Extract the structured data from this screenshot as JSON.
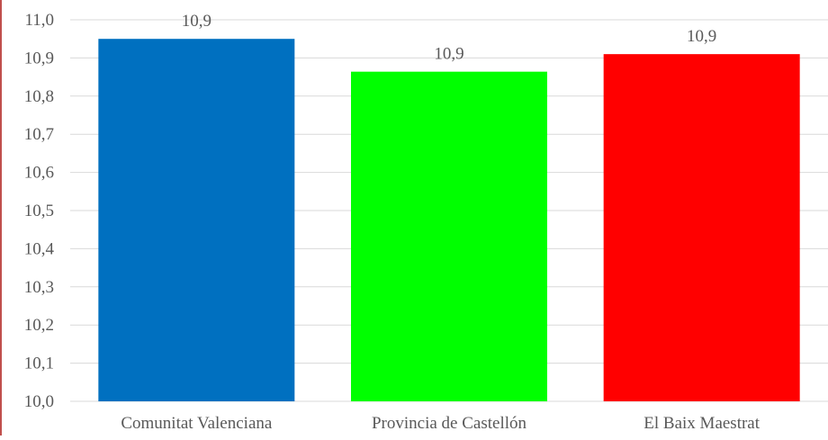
{
  "chart_data": {
    "type": "bar",
    "title": "",
    "xlabel": "",
    "ylabel": "",
    "categories": [
      "Comunitat Valenciana",
      "Provincia de Castellón",
      "El Baix Maestrat"
    ],
    "values": [
      10.95,
      10.864,
      10.91
    ],
    "data_labels": [
      "10,9",
      "10,9",
      "10,9"
    ],
    "colors": [
      "#0070c0",
      "#00ff00",
      "#ff0000"
    ],
    "ylim": [
      10.0,
      11.0
    ],
    "yticks": [
      10.0,
      10.1,
      10.2,
      10.3,
      10.4,
      10.5,
      10.6,
      10.7,
      10.8,
      10.9,
      11.0
    ],
    "ytick_labels": [
      "10,0",
      "10,1",
      "10,2",
      "10,3",
      "10,4",
      "10,5",
      "10,6",
      "10,7",
      "10,8",
      "10,9",
      "11,0"
    ],
    "grid": true,
    "legend": "none",
    "gridline_color": "#d9d9d9",
    "frame_border_color": "#c0504d"
  }
}
